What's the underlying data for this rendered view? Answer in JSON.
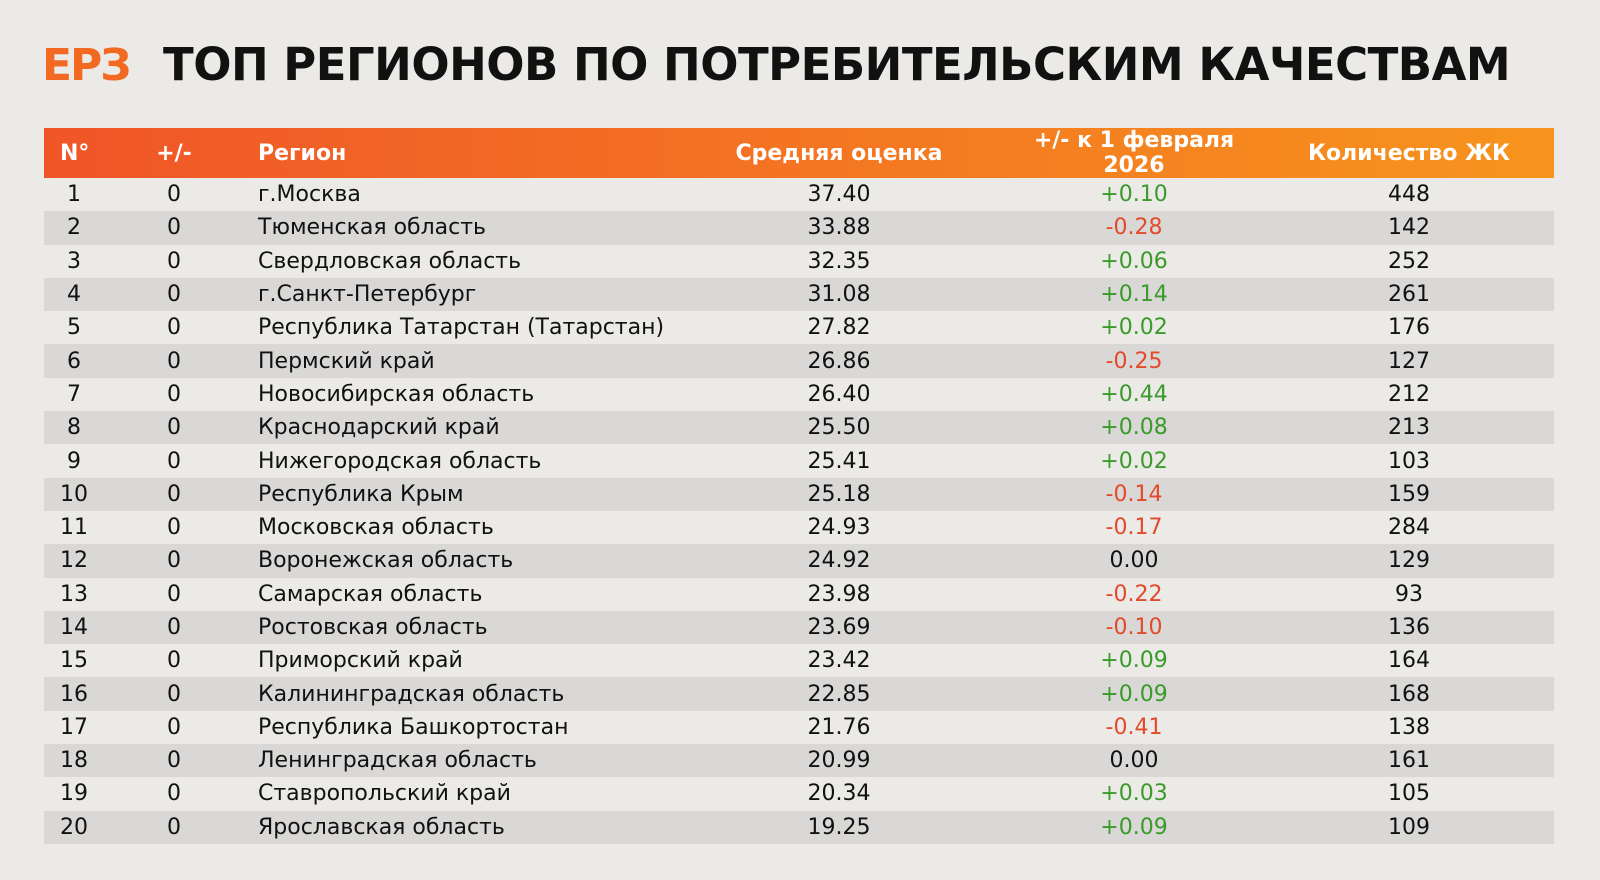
{
  "header": {
    "logo": "ЕРЗ",
    "title": "ТОП РЕГИОНОВ ПО ПОТРЕБИТЕЛЬСКИМ КАЧЕСТВАМ"
  },
  "table": {
    "columns": [
      "N°",
      "+/-",
      "Регион",
      "Средняя оценка",
      "+/- к 1 февраля 2026",
      "Количество ЖК"
    ],
    "rows": [
      [
        "1",
        "0",
        "г.Москва",
        "37.40",
        "+0.10",
        "448"
      ],
      [
        "2",
        "0",
        "Тюменская область",
        "33.88",
        "-0.28",
        "142"
      ],
      [
        "3",
        "0",
        "Свердловская область",
        "32.35",
        "+0.06",
        "252"
      ],
      [
        "4",
        "0",
        "г.Санкт-Петербург",
        "31.08",
        "+0.14",
        "261"
      ],
      [
        "5",
        "0",
        "Республика Татарстан (Татарстан)",
        "27.82",
        "+0.02",
        "176"
      ],
      [
        "6",
        "0",
        "Пермский край",
        "26.86",
        "-0.25",
        "127"
      ],
      [
        "7",
        "0",
        "Новосибирская область",
        "26.40",
        "+0.44",
        "212"
      ],
      [
        "8",
        "0",
        "Краснодарский край",
        "25.50",
        "+0.08",
        "213"
      ],
      [
        "9",
        "0",
        "Нижегородская область",
        "25.41",
        "+0.02",
        "103"
      ],
      [
        "10",
        "0",
        "Республика Крым",
        "25.18",
        "-0.14",
        "159"
      ],
      [
        "11",
        "0",
        "Московская область",
        "24.93",
        "-0.17",
        "284"
      ],
      [
        "12",
        "0",
        "Воронежская область",
        "24.92",
        "0.00",
        "129"
      ],
      [
        "13",
        "0",
        "Самарская область",
        "23.98",
        "-0.22",
        "93"
      ],
      [
        "14",
        "0",
        "Ростовская область",
        "23.69",
        "-0.10",
        "136"
      ],
      [
        "15",
        "0",
        "Приморский край",
        "23.42",
        "+0.09",
        "164"
      ],
      [
        "16",
        "0",
        "Калининградская область",
        "22.85",
        "+0.09",
        "168"
      ],
      [
        "17",
        "0",
        "Республика Башкортостан",
        "21.76",
        "-0.41",
        "138"
      ],
      [
        "18",
        "0",
        "Ленинградская область",
        "20.99",
        "0.00",
        "161"
      ],
      [
        "19",
        "0",
        "Ставропольский край",
        "20.34",
        "+0.03",
        "105"
      ],
      [
        "20",
        "0",
        "Ярославская область",
        "19.25",
        "+0.09",
        "109"
      ]
    ]
  }
}
